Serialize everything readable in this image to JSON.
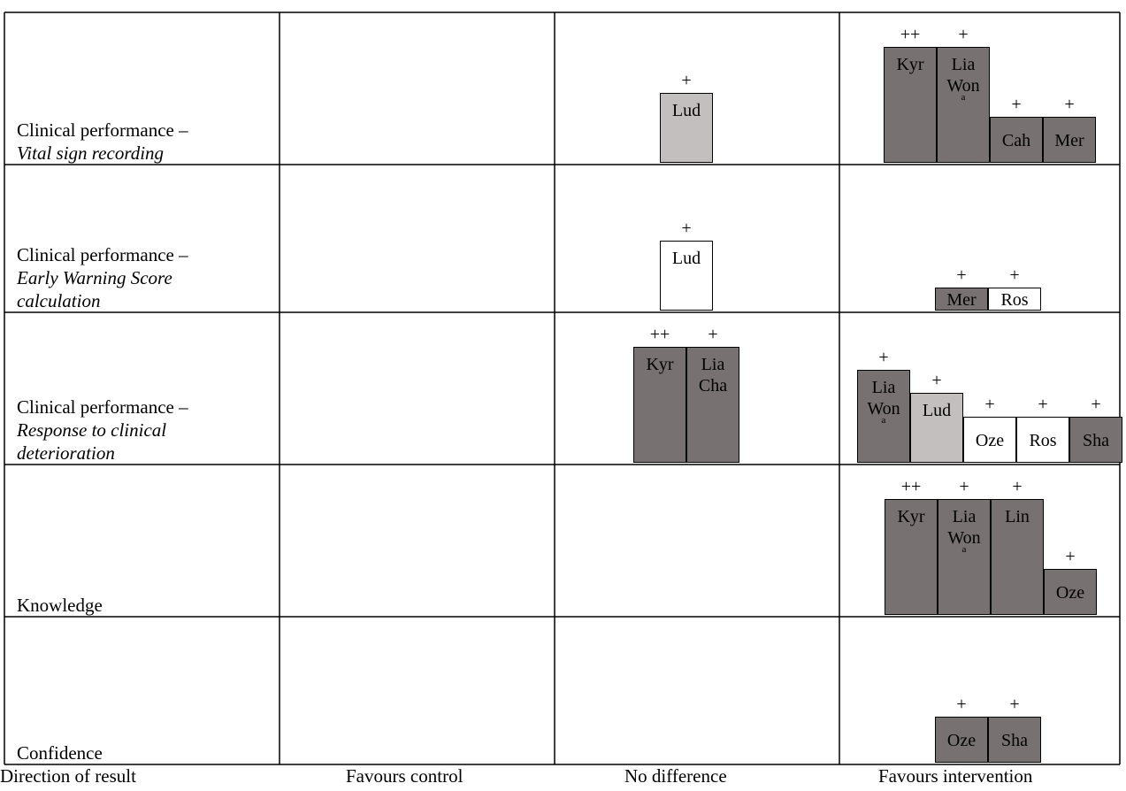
{
  "columns": {
    "direction_label": "Direction of result",
    "favours_control": "Favours control",
    "no_difference": "No difference",
    "favours_intervention": "Favours intervention"
  },
  "colors": {
    "dark": "#777171",
    "light": "#c4bfbf",
    "white": "#ffffff"
  },
  "chart_data": {
    "type": "table",
    "rows": [
      {
        "label": [
          "Clinical performance –",
          "Vital sign recording",
          ""
        ],
        "cells": {
          "favours_control": [],
          "no_difference": [
            {
              "study": "Lud",
              "sup": "",
              "quality": "+",
              "fill": "light",
              "level": 3
            }
          ],
          "favours_intervention": [
            {
              "study": "Kyr",
              "sup": "",
              "quality": "++",
              "fill": "dark",
              "level": 5
            },
            {
              "study": "Lia Won",
              "sup": "a",
              "quality": "+",
              "fill": "dark",
              "level": 5
            },
            {
              "study": "Cah",
              "sup": "",
              "quality": "+",
              "fill": "dark",
              "level": 2
            },
            {
              "study": "Mer",
              "sup": "",
              "quality": "+",
              "fill": "dark",
              "level": 2
            }
          ]
        }
      },
      {
        "label": [
          "Clinical performance –",
          "Early Warning Score",
          "calculation"
        ],
        "cells": {
          "favours_control": [],
          "no_difference": [
            {
              "study": "Lud",
              "sup": "",
              "quality": "+",
              "fill": "white",
              "level": 3
            }
          ],
          "favours_intervention": [
            {
              "study": "Mer",
              "sup": "",
              "quality": "+",
              "fill": "dark",
              "level": 1
            },
            {
              "study": "Ros",
              "sup": "",
              "quality": "+",
              "fill": "white",
              "level": 1
            }
          ]
        }
      },
      {
        "label": [
          "Clinical performance –",
          "Response to clinical",
          "deterioration"
        ],
        "cells": {
          "favours_control": [],
          "no_difference": [
            {
              "study": "Kyr",
              "sup": "",
              "quality": "++",
              "fill": "dark",
              "level": 5
            },
            {
              "study": "Lia Cha",
              "sup": "",
              "quality": "+",
              "fill": "dark",
              "level": 5
            }
          ],
          "favours_intervention": [
            {
              "study": "Lia Won",
              "sup": "a",
              "quality": "+",
              "fill": "dark",
              "level": 4
            },
            {
              "study": "Lud",
              "sup": "",
              "quality": "+",
              "fill": "light",
              "level": 3
            },
            {
              "study": "Oze",
              "sup": "",
              "quality": "+",
              "fill": "white",
              "level": 2
            },
            {
              "study": "Ros",
              "sup": "",
              "quality": "+",
              "fill": "white",
              "level": 2
            },
            {
              "study": "Sha",
              "sup": "",
              "quality": "+",
              "fill": "dark",
              "level": 2
            }
          ]
        }
      },
      {
        "label": [
          "Knowledge",
          "",
          ""
        ],
        "cells": {
          "favours_control": [],
          "no_difference": [],
          "favours_intervention": [
            {
              "study": "Kyr",
              "sup": "",
              "quality": "++",
              "fill": "dark",
              "level": 5
            },
            {
              "study": "Lia Won",
              "sup": "a",
              "quality": "+",
              "fill": "dark",
              "level": 5
            },
            {
              "study": "Lin",
              "sup": "",
              "quality": "+",
              "fill": "dark",
              "level": 5
            },
            {
              "study": "Oze",
              "sup": "",
              "quality": "+",
              "fill": "dark",
              "level": 2
            }
          ]
        }
      },
      {
        "label": [
          "Confidence",
          "",
          ""
        ],
        "cells": {
          "favours_control": [],
          "no_difference": [],
          "favours_intervention": [
            {
              "study": "Oze",
              "sup": "",
              "quality": "+",
              "fill": "dark",
              "level": 2
            },
            {
              "study": "Sha",
              "sup": "",
              "quality": "+",
              "fill": "dark",
              "level": 2
            }
          ]
        }
      }
    ]
  }
}
